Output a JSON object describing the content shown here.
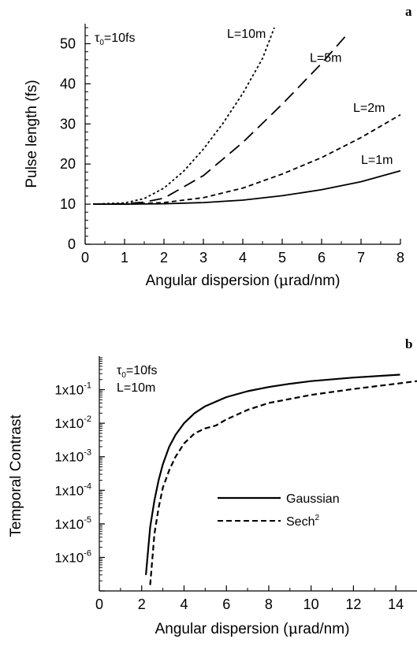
{
  "chart_data": [
    {
      "panel": "a",
      "type": "line",
      "annotation": "τ0=10fs",
      "annotation_main": "τ",
      "annotation_sub": "0",
      "annotation_rest": "=10fs",
      "xlabel_pre": "Angular dispersion (",
      "xlabel_mu": "μ",
      "xlabel_post": "rad/nm)",
      "ylabel": "Pulse length (fs)",
      "xlim": [
        0,
        8
      ],
      "ylim": [
        0,
        55
      ],
      "xticks": [
        0,
        1,
        2,
        3,
        4,
        5,
        6,
        7,
        8
      ],
      "yticks": [
        0,
        10,
        20,
        30,
        40,
        50
      ],
      "tau0": 10,
      "series": [
        {
          "name": "L=1m",
          "style": "solid",
          "x": [
            0.2,
            1,
            2,
            3,
            4,
            5,
            6,
            7,
            8
          ],
          "y": [
            10,
            10.0,
            10.1,
            10.4,
            11.0,
            12.1,
            13.6,
            15.6,
            18.3
          ]
        },
        {
          "name": "L=2m",
          "style": "short-dash",
          "x": [
            0.2,
            1,
            2,
            3,
            4,
            5,
            6,
            7,
            8
          ],
          "y": [
            10,
            10.0,
            10.4,
            11.6,
            14.0,
            17.5,
            21.6,
            26.6,
            32.3
          ]
        },
        {
          "name": "L=5m",
          "style": "long-dash",
          "x": [
            0.2,
            1,
            1.5,
            2,
            3,
            4,
            5,
            6,
            6.6
          ],
          "y": [
            10,
            10.1,
            10.5,
            11.5,
            17.1,
            25.4,
            34.9,
            45.1,
            51.8
          ]
        },
        {
          "name": "L=10m",
          "style": "dot",
          "x": [
            0.2,
            1,
            1.5,
            2,
            2.5,
            3,
            3.5,
            4,
            4.5,
            4.8
          ],
          "y": [
            10,
            10.3,
            11.4,
            14.0,
            18.2,
            23.7,
            30.2,
            37.6,
            46.3,
            54.0
          ]
        }
      ],
      "labels": [
        {
          "text": "L=10m",
          "x": 3.6,
          "y": 51.5
        },
        {
          "text": "L=5m",
          "x": 5.7,
          "y": 45.5
        },
        {
          "text": "L=2m",
          "x": 6.8,
          "y": 33.0
        },
        {
          "text": "L=1m",
          "x": 7.0,
          "y": 20.0
        }
      ]
    },
    {
      "panel": "b",
      "type": "line",
      "yscale": "log",
      "annotation_main": "τ",
      "annotation_sub": "0",
      "annotation_rest": "=10fs",
      "annotation2": "L=10m",
      "xlabel_pre": "Angular dispersion (",
      "xlabel_mu": "μ",
      "xlabel_post": "rad/nm)",
      "ylabel": "Temporal Contrast",
      "xlim": [
        0,
        15
      ],
      "ylim": [
        1e-07,
        1
      ],
      "xticks": [
        0,
        2,
        4,
        6,
        8,
        10,
        12,
        14
      ],
      "yticks": [
        1e-06,
        1e-05,
        0.0001,
        0.001,
        0.01,
        0.1
      ],
      "ytick_labels": [
        "1x10",
        "1x10",
        "1x10",
        "1x10",
        "1x10",
        "1x10"
      ],
      "ytick_exps": [
        "-6",
        "-5",
        "-4",
        "-3",
        "-2",
        "-1"
      ],
      "legend": [
        {
          "name": "Gaussian",
          "style": "solid"
        },
        {
          "name": "Sech",
          "sup": "2",
          "style": "dash"
        }
      ],
      "series": [
        {
          "name": "Gaussian",
          "style": "solid",
          "x": [
            2.2,
            2.4,
            2.6,
            2.8,
            3.0,
            3.3,
            3.6,
            4.0,
            4.5,
            5.0,
            6.0,
            7.0,
            8.0,
            9.0,
            10.0,
            12.0,
            14.2
          ],
          "y": [
            3e-07,
            8e-06,
            5e-05,
            0.0002,
            0.0006,
            0.002,
            0.0045,
            0.01,
            0.02,
            0.032,
            0.06,
            0.09,
            0.12,
            0.15,
            0.18,
            0.23,
            0.28
          ]
        },
        {
          "name": "Sech2",
          "style": "dash",
          "x": [
            2.4,
            2.6,
            2.8,
            3.0,
            3.3,
            3.6,
            4.0,
            4.5,
            5.0,
            5.5,
            6.0,
            7.0,
            8.0,
            10.0,
            12.0,
            14.0,
            15.0
          ],
          "y": [
            1.5e-07,
            5e-06,
            3e-05,
            0.00012,
            0.0004,
            0.001,
            0.0025,
            0.005,
            0.007,
            0.0085,
            0.013,
            0.025,
            0.04,
            0.07,
            0.105,
            0.15,
            0.18
          ]
        }
      ]
    }
  ]
}
